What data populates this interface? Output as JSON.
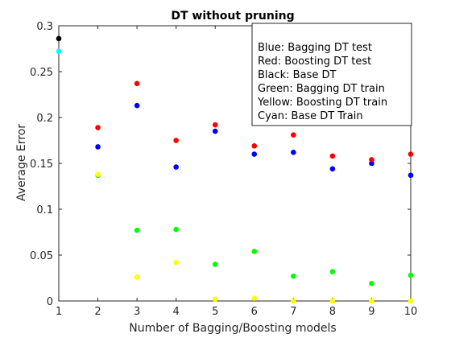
{
  "chart_data": {
    "type": "scatter",
    "title": "DT without pruning",
    "xlabel": "Number of Bagging/Boosting models",
    "ylabel": "Average Error",
    "xlim": [
      1,
      10
    ],
    "ylim": [
      0,
      0.3
    ],
    "xticks": [
      "1",
      "2",
      "3",
      "4",
      "5",
      "6",
      "7",
      "8",
      "9",
      "10"
    ],
    "yticks": [
      "0",
      "0.05",
      "0.1",
      "0.15",
      "0.2",
      "0.25",
      "0.3"
    ],
    "grid": false,
    "legend_position": "top-right",
    "legend_lines": [
      "Blue: Bagging DT test",
      "Red: Boosting DT test",
      "Black: Base DT",
      "Green: Bagging DT train",
      "Yellow: Boosting DT train",
      "Cyan: Base DT Train"
    ],
    "series": [
      {
        "color": "#0000ff",
        "x": [
          2,
          3,
          4,
          5,
          6,
          7,
          8,
          9,
          10
        ],
        "y": [
          0.168,
          0.213,
          0.146,
          0.185,
          0.16,
          0.162,
          0.144,
          0.15,
          0.137
        ]
      },
      {
        "color": "#ff0000",
        "x": [
          2,
          3,
          4,
          5,
          6,
          7,
          8,
          9,
          10
        ],
        "y": [
          0.189,
          0.237,
          0.175,
          0.192,
          0.169,
          0.181,
          0.158,
          0.154,
          0.16
        ]
      },
      {
        "color": "#000000",
        "x": [
          1
        ],
        "y": [
          0.286
        ]
      },
      {
        "color": "#00ff00",
        "x": [
          2,
          3,
          4,
          5,
          6,
          7,
          8,
          9,
          10
        ],
        "y": [
          0.137,
          0.077,
          0.078,
          0.04,
          0.054,
          0.027,
          0.032,
          0.019,
          0.028
        ]
      },
      {
        "color": "#ffff00",
        "x": [
          2,
          3,
          4,
          5,
          6,
          7,
          8,
          9,
          10
        ],
        "y": [
          0.138,
          0.026,
          0.042,
          0.002,
          0.003,
          0.0,
          0.0,
          0.0,
          0.0
        ]
      },
      {
        "color": "#00ffff",
        "x": [
          1
        ],
        "y": [
          0.272
        ]
      }
    ]
  }
}
